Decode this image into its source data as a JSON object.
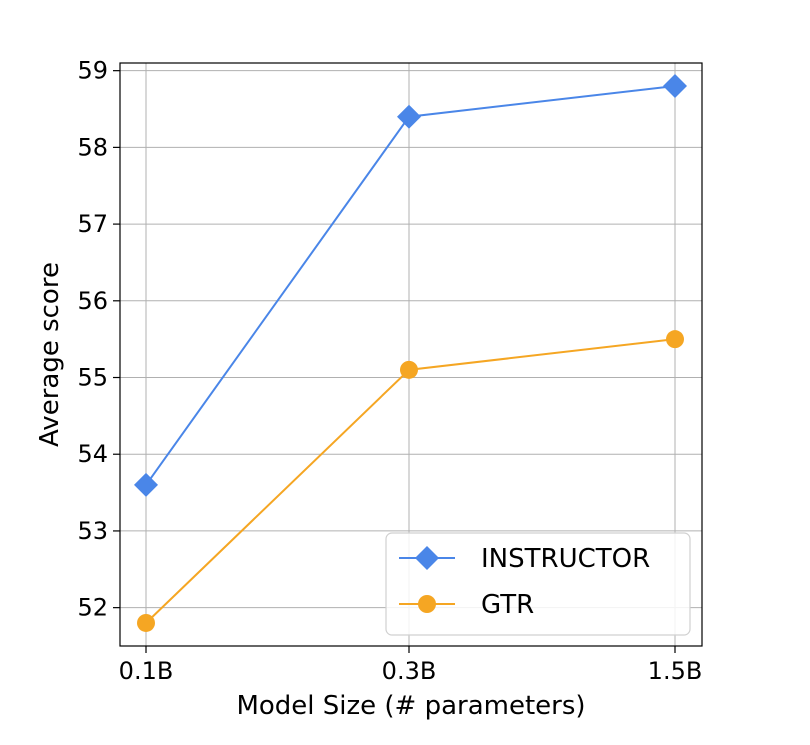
{
  "chart_data": {
    "type": "line",
    "categories": [
      "0.1B",
      "0.3B",
      "1.5B"
    ],
    "xlabel": "Model Size (# parameters)",
    "ylabel": "Average score",
    "ylim": [
      51.5,
      59.1
    ],
    "yticks": [
      "52",
      "53",
      "54",
      "55",
      "56",
      "57",
      "58",
      "59"
    ],
    "grid": true,
    "legend_position": "bottom-right",
    "series": [
      {
        "name": "INSTRUCTOR",
        "values": [
          53.6,
          58.4,
          58.8
        ],
        "color": "#4a86e8",
        "marker": "diamond"
      },
      {
        "name": "GTR",
        "values": [
          51.8,
          55.1,
          55.5
        ],
        "color": "#f5a623",
        "marker": "circle"
      }
    ]
  }
}
